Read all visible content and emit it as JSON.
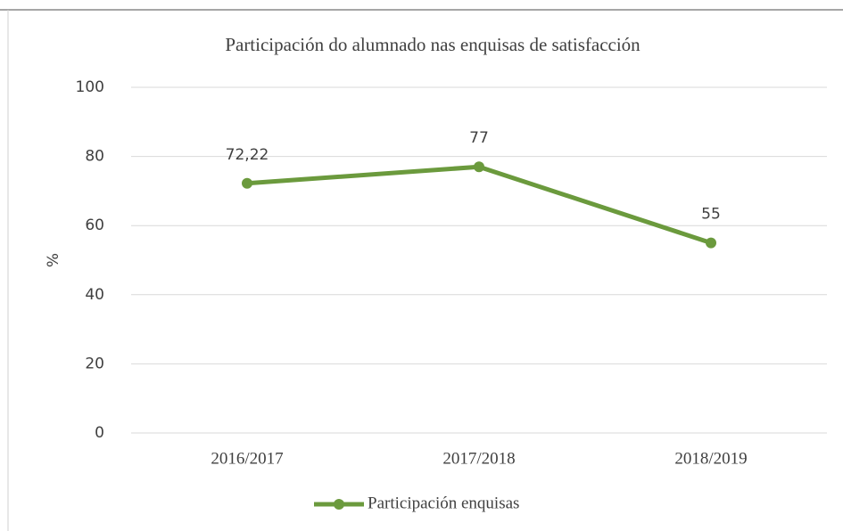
{
  "chart_data": {
    "type": "line",
    "title": "Participación do alumnado nas enquisas de satisfacción",
    "y_label": "%",
    "categories": [
      "2016/2017",
      "2017/2018",
      "2018/2019"
    ],
    "series": [
      {
        "name": "Participación enquisas",
        "color": "#6b9a3d",
        "values": [
          72.22,
          77,
          55
        ],
        "value_labels": [
          "72,22",
          "77",
          "55"
        ]
      }
    ],
    "ylim": [
      0,
      100
    ],
    "yticks": [
      0,
      20,
      40,
      60,
      80,
      100
    ],
    "grid": true,
    "legend": "bottom"
  }
}
